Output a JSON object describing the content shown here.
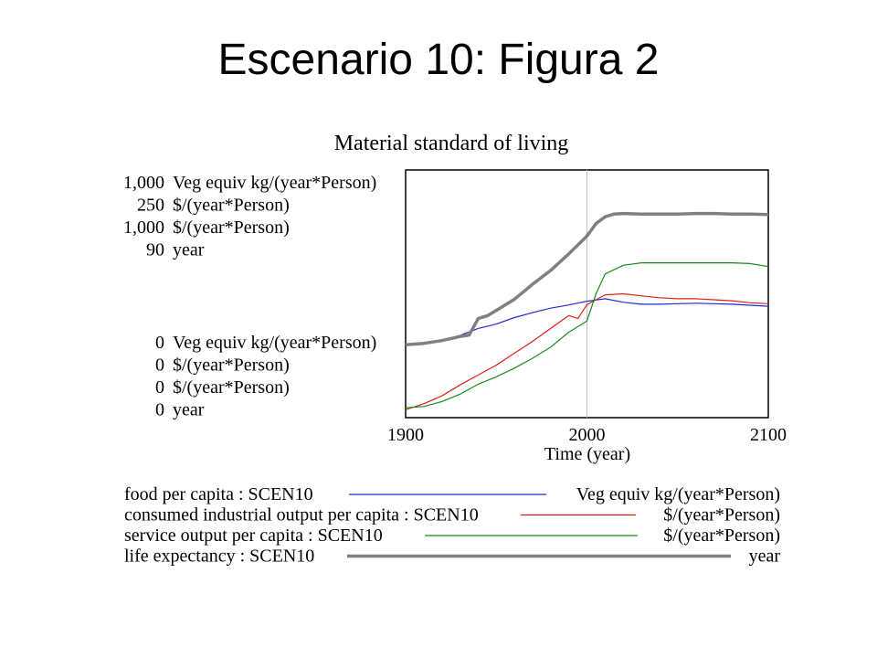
{
  "slide_title": "Escenario 10: Figura 2",
  "chart_data": {
    "type": "line",
    "title": "Material standard of living",
    "xlabel": "Time (year)",
    "xlim": [
      1900,
      2100
    ],
    "x_ticks": [
      "1900",
      "2000",
      "2100"
    ],
    "vertical_marker_x": 2000,
    "axis_scales": [
      {
        "max_label": "1,000",
        "min_label": "0",
        "unit": "Veg equiv kg/(year*Person)",
        "ylim": [
          0,
          1000
        ]
      },
      {
        "max_label": "250",
        "min_label": "0",
        "unit": "$/(year*Person)",
        "ylim": [
          0,
          250
        ]
      },
      {
        "max_label": "1,000",
        "min_label": "0",
        "unit": "$/(year*Person)",
        "ylim": [
          0,
          1000
        ]
      },
      {
        "max_label": "90",
        "min_label": "0",
        "unit": "year",
        "ylim": [
          0,
          90
        ]
      }
    ],
    "series": [
      {
        "name": "food per capita : SCEN10",
        "unit": "Veg equiv kg/(year*Person)",
        "color": "#1f2bd6",
        "scale": 0,
        "x": [
          1900,
          1910,
          1920,
          1930,
          1940,
          1950,
          1960,
          1970,
          1980,
          1990,
          2000,
          2010,
          2020,
          2030,
          2040,
          2050,
          2060,
          2070,
          2080,
          2090,
          2100
        ],
        "y": [
          290,
          300,
          312,
          332,
          360,
          378,
          404,
          424,
          442,
          455,
          470,
          480,
          466,
          458,
          458,
          460,
          462,
          460,
          458,
          454,
          450
        ]
      },
      {
        "name": "consumed industrial output per capita : SCEN10",
        "unit": "$/(year*Person)",
        "color": "#e0201a",
        "scale": 1,
        "x": [
          1900,
          1910,
          1920,
          1930,
          1940,
          1950,
          1960,
          1970,
          1980,
          1990,
          1995,
          2000,
          2010,
          2020,
          2030,
          2040,
          2050,
          2060,
          2070,
          2080,
          2090,
          2100
        ],
        "y": [
          8,
          14,
          22,
          33,
          43,
          53,
          65,
          77,
          90,
          103,
          100,
          114,
          124,
          125,
          123,
          121,
          120,
          120,
          119,
          118,
          116,
          115
        ],
        "y_scaled_note": ""
      },
      {
        "name": "service output per capita : SCEN10",
        "unit": "$/(year*Person)",
        "color": "#1a8a1a",
        "scale": 2,
        "x": [
          1900,
          1910,
          1920,
          1930,
          1940,
          1950,
          1960,
          1970,
          1980,
          1990,
          2000,
          2005,
          2010,
          2020,
          2030,
          2040,
          2050,
          2060,
          2070,
          2080,
          2090,
          2100
        ],
        "y": [
          40,
          45,
          65,
          95,
          135,
          165,
          200,
          240,
          285,
          345,
          390,
          500,
          580,
          615,
          625,
          625,
          625,
          625,
          625,
          625,
          622,
          610
        ]
      },
      {
        "name": "life expectancy : SCEN10",
        "unit": "year",
        "color": "#808080",
        "scale": 3,
        "x": [
          1900,
          1910,
          1920,
          1930,
          1935,
          1940,
          1945,
          1950,
          1960,
          1970,
          1980,
          1990,
          2000,
          2005,
          2010,
          2015,
          2020,
          2030,
          2040,
          2050,
          2060,
          2070,
          2080,
          2090,
          2100
        ],
        "y": [
          26.5,
          27,
          28,
          29.5,
          30,
          36,
          37,
          39,
          43,
          48.5,
          53.5,
          59.5,
          66,
          70.5,
          73,
          74,
          74.2,
          74,
          74,
          74,
          74.2,
          74.2,
          74,
          74,
          73.8
        ]
      }
    ],
    "legend": {
      "placement": "bottom"
    }
  }
}
